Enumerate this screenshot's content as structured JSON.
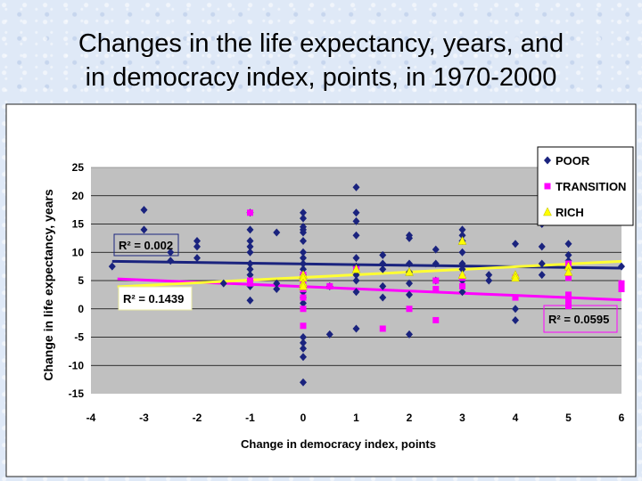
{
  "title_lines": [
    "Changes in the life expectancy, years, and",
    "in democracy index, points,  in 1970-2000"
  ],
  "chart_data": {
    "type": "scatter",
    "title": "Changes in the life expectancy, years, and in democracy index, points, in 1970-2000",
    "xlabel": "Change in democracy index, points",
    "ylabel": "Change in life expectancy, years",
    "xlim": [
      -4,
      6
    ],
    "ylim": [
      -15,
      25
    ],
    "xticks": [
      -4,
      -3,
      -2,
      -1,
      0,
      1,
      2,
      3,
      4,
      5,
      6
    ],
    "yticks": [
      -15,
      -10,
      -5,
      0,
      5,
      10,
      15,
      20,
      25
    ],
    "grid": true,
    "legend_position": "top-right",
    "colors": {
      "plot_bg": "#c0c0c0",
      "poor": "#1a237e",
      "transition": "#ff00ff",
      "rich": "#ffff00",
      "rich_line": "#ffff33"
    },
    "series": [
      {
        "name": "POOR",
        "marker": "diamond",
        "points": [
          [
            -3.6,
            7.5
          ],
          [
            -3,
            17.5
          ],
          [
            -3,
            14
          ],
          [
            -2.5,
            10
          ],
          [
            -2.5,
            8.5
          ],
          [
            -2,
            12
          ],
          [
            -2,
            11
          ],
          [
            -2,
            9
          ],
          [
            -1.5,
            4.5
          ],
          [
            -1,
            17
          ],
          [
            -1,
            14
          ],
          [
            -1,
            12
          ],
          [
            -1,
            11
          ],
          [
            -1,
            10
          ],
          [
            -1,
            8
          ],
          [
            -1,
            7
          ],
          [
            -1,
            6
          ],
          [
            -1,
            5
          ],
          [
            -1,
            4
          ],
          [
            -1,
            1.5
          ],
          [
            -0.5,
            13.5
          ],
          [
            -0.5,
            4.5
          ],
          [
            -0.5,
            3.5
          ],
          [
            0,
            17
          ],
          [
            0,
            16
          ],
          [
            0,
            14.5
          ],
          [
            0,
            14
          ],
          [
            0,
            13.5
          ],
          [
            0,
            12
          ],
          [
            0,
            10
          ],
          [
            0,
            9
          ],
          [
            0,
            8
          ],
          [
            0,
            7
          ],
          [
            0,
            6
          ],
          [
            0,
            5
          ],
          [
            0,
            4
          ],
          [
            0,
            3
          ],
          [
            0,
            2
          ],
          [
            0,
            1
          ],
          [
            0,
            -5
          ],
          [
            0,
            -6
          ],
          [
            0,
            -7
          ],
          [
            0,
            -8.5
          ],
          [
            0,
            -13
          ],
          [
            0.5,
            -4.5
          ],
          [
            0.5,
            4
          ],
          [
            1,
            21.5
          ],
          [
            1,
            17
          ],
          [
            1,
            15.5
          ],
          [
            1,
            13
          ],
          [
            1,
            9
          ],
          [
            1,
            7.5
          ],
          [
            1,
            6
          ],
          [
            1,
            5
          ],
          [
            1,
            3
          ],
          [
            1,
            -3.5
          ],
          [
            1.5,
            9.5
          ],
          [
            1.5,
            8
          ],
          [
            1.5,
            7
          ],
          [
            1.5,
            4
          ],
          [
            1.5,
            2
          ],
          [
            2,
            13
          ],
          [
            2,
            12.5
          ],
          [
            2,
            8
          ],
          [
            2,
            6.5
          ],
          [
            2,
            4.5
          ],
          [
            2,
            2.5
          ],
          [
            2,
            -4.5
          ],
          [
            2.5,
            10.5
          ],
          [
            2.5,
            8
          ],
          [
            2.5,
            5
          ],
          [
            3,
            14
          ],
          [
            3,
            13
          ],
          [
            3,
            12
          ],
          [
            3,
            10
          ],
          [
            3,
            8
          ],
          [
            3,
            7
          ],
          [
            3,
            5
          ],
          [
            3,
            3
          ],
          [
            3.5,
            6
          ],
          [
            3.5,
            5
          ],
          [
            4,
            11.5
          ],
          [
            4,
            0
          ],
          [
            4,
            -2
          ],
          [
            4.5,
            15
          ],
          [
            4.5,
            11
          ],
          [
            4.5,
            8
          ],
          [
            4.5,
            6
          ],
          [
            5,
            11.5
          ],
          [
            5,
            9.5
          ],
          [
            5,
            8.5
          ],
          [
            6,
            7.5
          ]
        ],
        "trendline": {
          "x": [
            -3.6,
            6
          ],
          "y": [
            8.4,
            7.2
          ]
        },
        "r2_label": "R² = 0.002"
      },
      {
        "name": "TRANSITION",
        "marker": "square",
        "points": [
          [
            -1,
            17
          ],
          [
            -1,
            5
          ],
          [
            -1,
            4.5
          ],
          [
            0,
            6
          ],
          [
            0,
            5
          ],
          [
            0,
            4
          ],
          [
            0,
            3.5
          ],
          [
            0,
            2
          ],
          [
            0,
            0
          ],
          [
            0,
            -3
          ],
          [
            0.5,
            4
          ],
          [
            1,
            7
          ],
          [
            1.5,
            -3.5
          ],
          [
            2,
            0
          ],
          [
            2.5,
            5
          ],
          [
            2.5,
            3.5
          ],
          [
            2.5,
            -2
          ],
          [
            3,
            5.5
          ],
          [
            3,
            4
          ],
          [
            4,
            5.5
          ],
          [
            4,
            2
          ],
          [
            5,
            8
          ],
          [
            5,
            5.5
          ],
          [
            5,
            2.5
          ],
          [
            5,
            2
          ],
          [
            5,
            1.5
          ],
          [
            5,
            1
          ],
          [
            5,
            0.5
          ],
          [
            6,
            4.5
          ],
          [
            6,
            3.5
          ]
        ],
        "trendline": {
          "x": [
            -3.5,
            6
          ],
          "y": [
            5.3,
            1.6
          ]
        },
        "r2_label": "R² = 0.1439"
      },
      {
        "name": "RICH",
        "marker": "triangle",
        "points": [
          [
            0,
            6
          ],
          [
            0,
            5.5
          ],
          [
            0,
            4.5
          ],
          [
            0,
            4
          ],
          [
            1,
            7
          ],
          [
            2,
            6.5
          ],
          [
            3,
            12
          ],
          [
            3,
            6
          ],
          [
            4,
            6
          ],
          [
            4,
            5.5
          ],
          [
            5,
            7.5
          ],
          [
            5,
            6.5
          ]
        ],
        "trendline": {
          "x": [
            -3.5,
            6
          ],
          "y": [
            3.9,
            8.4
          ]
        },
        "r2_label": "R² = 0.0595"
      }
    ]
  }
}
